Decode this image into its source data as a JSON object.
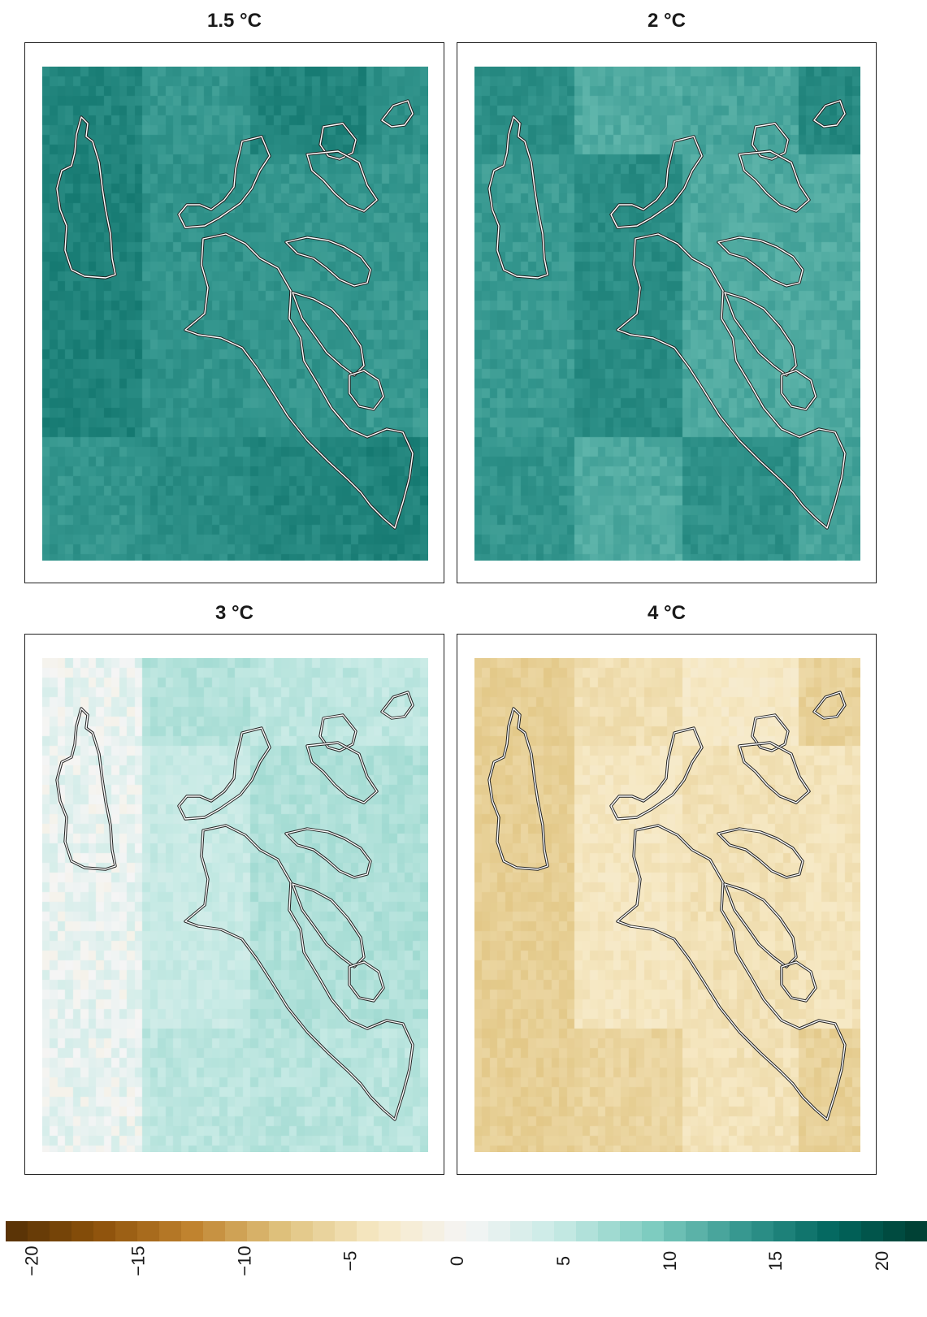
{
  "panels": [
    {
      "title": "1.5 °C",
      "base_value": 13.5
    },
    {
      "title": "2 °C",
      "base_value": 12.5
    },
    {
      "title": "3 °C",
      "base_value": 4.5
    },
    {
      "title": "4 °C",
      "base_value": -5.5
    }
  ],
  "colorbar": {
    "min": -21,
    "max": 21,
    "ticks": [
      "−20",
      "−15",
      "−10",
      "−5",
      "0",
      "5",
      "10",
      "15",
      "20"
    ],
    "colors_negative": [
      "#543005",
      "#8c510a",
      "#bf812d",
      "#dfc27d",
      "#f6e8c3"
    ],
    "color_zero": "#f5f5f5",
    "colors_positive": [
      "#c7eae5",
      "#80cdc1",
      "#35978f",
      "#01665e",
      "#003c30"
    ]
  }
}
